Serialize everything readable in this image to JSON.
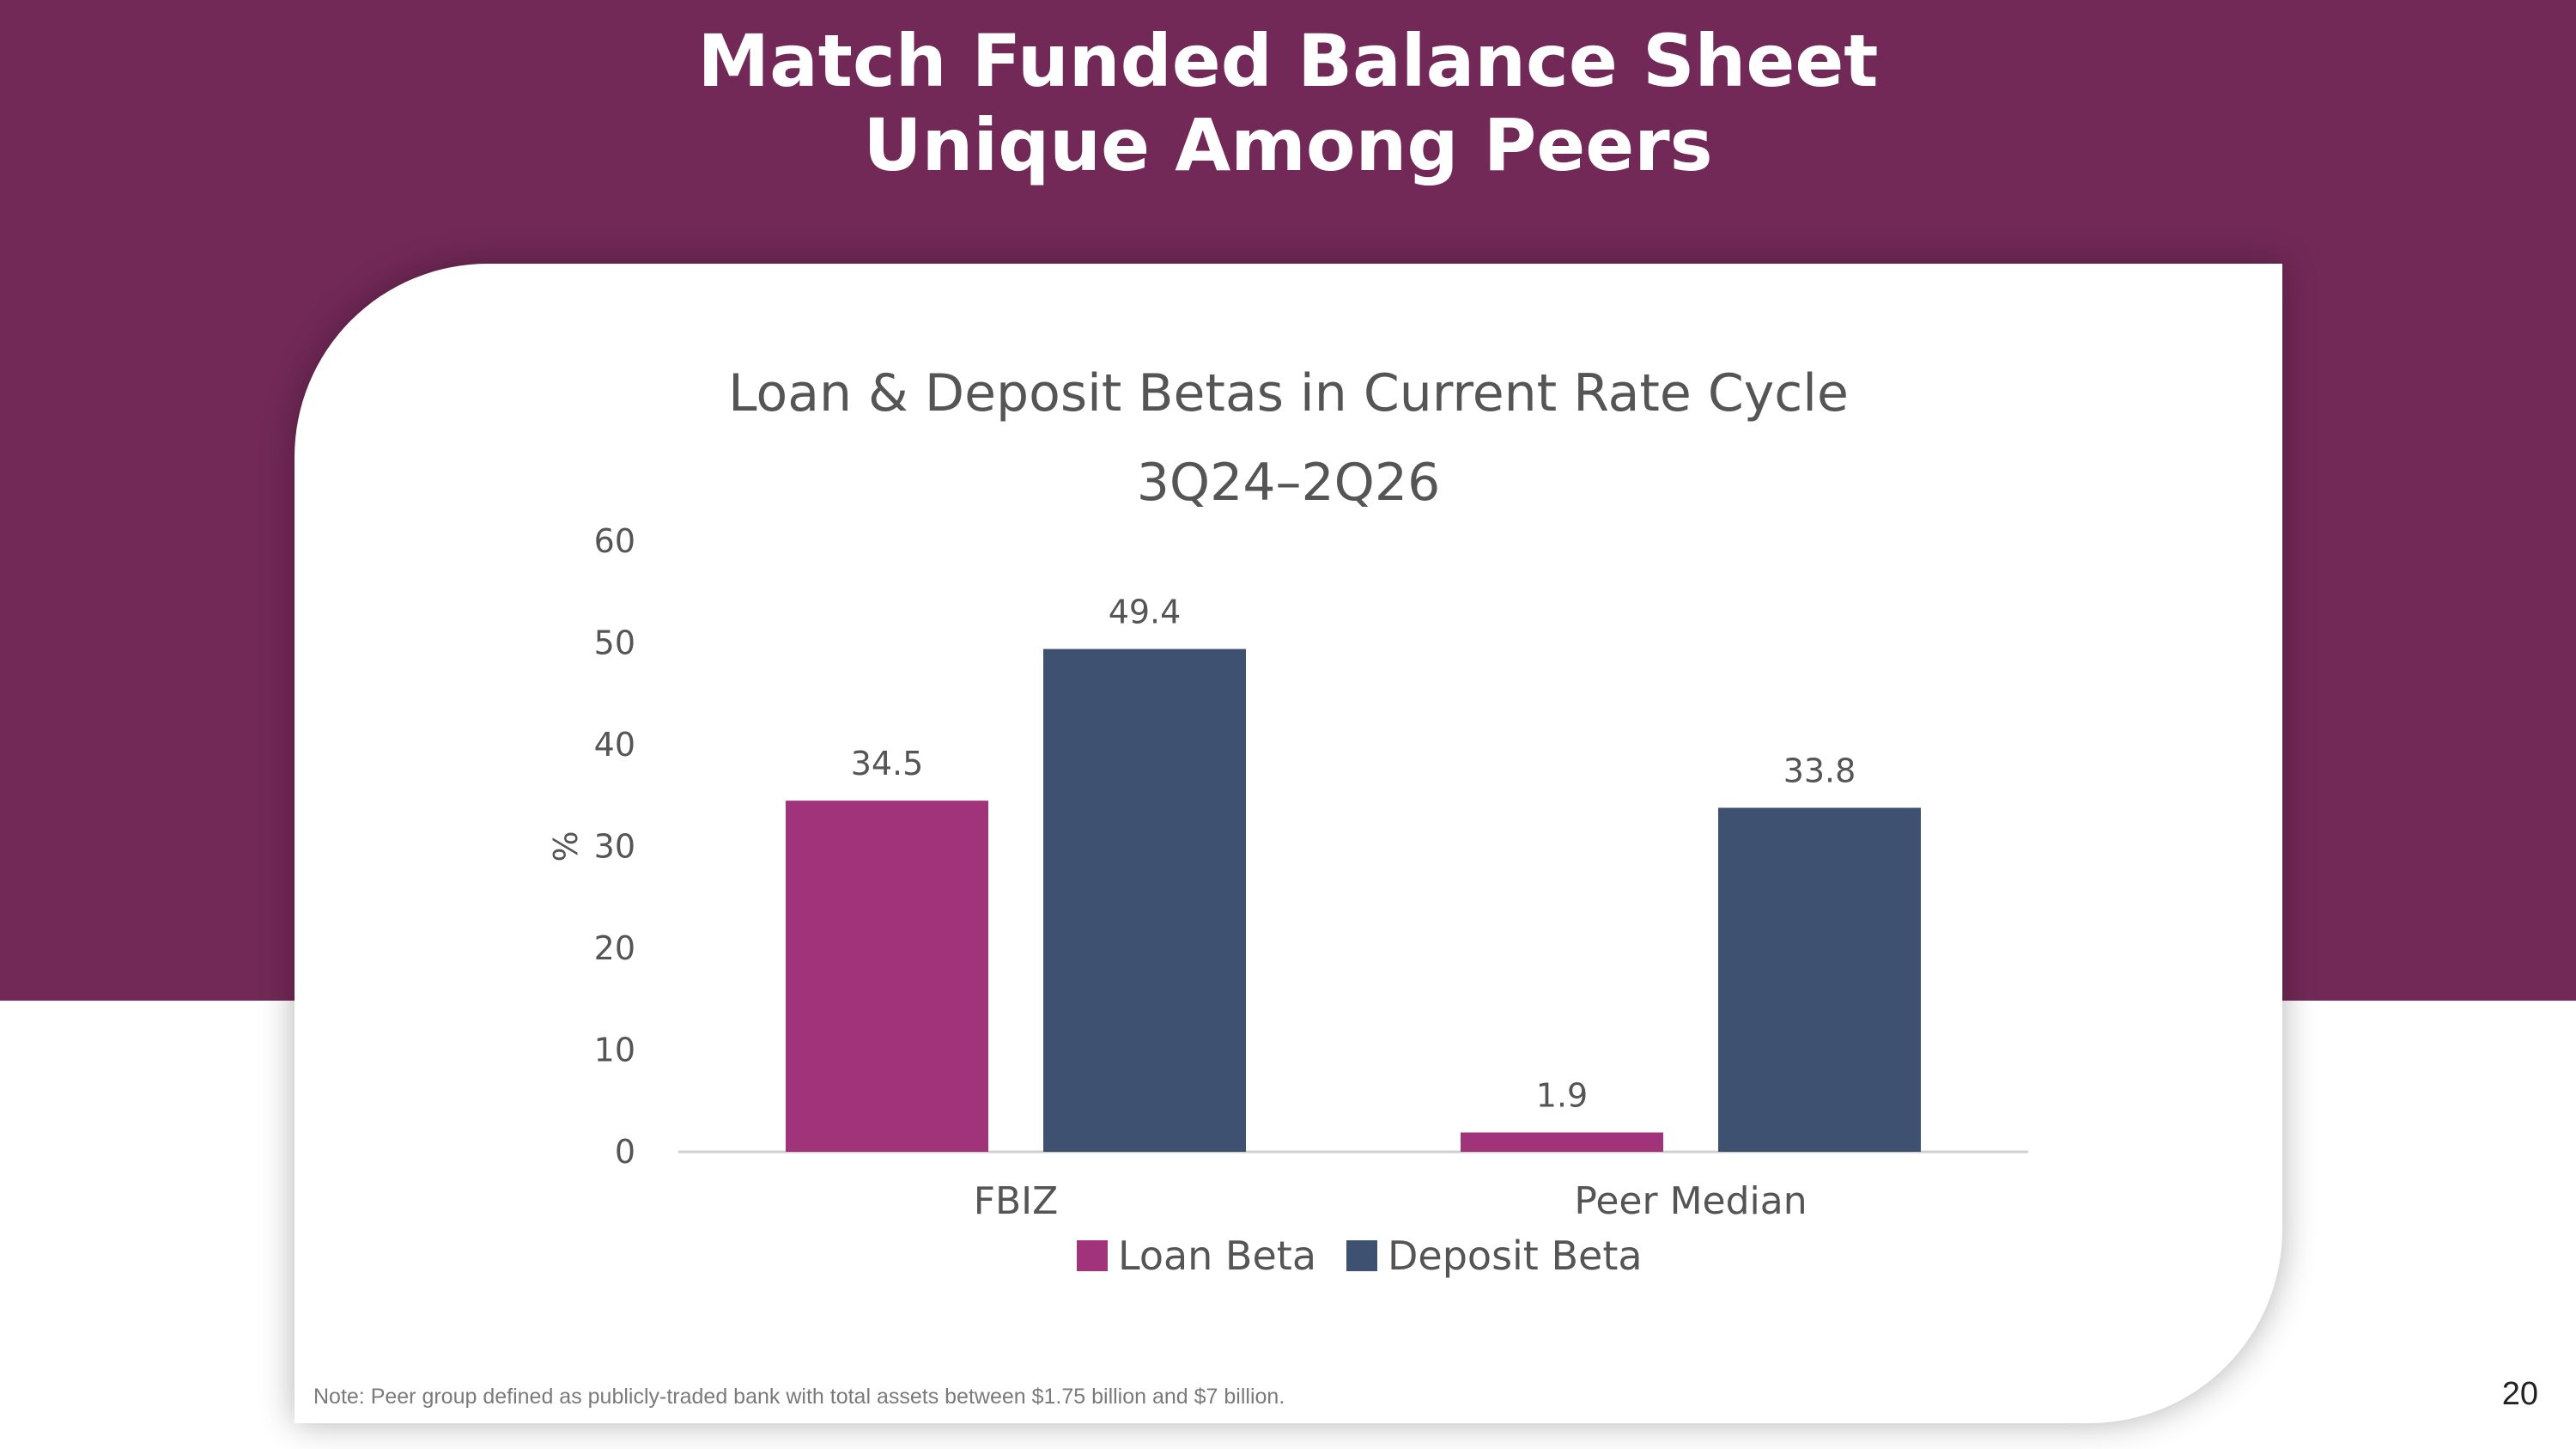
{
  "header": {
    "title_line1": "Match Funded Balance Sheet",
    "title_line2": "Unique Among Peers"
  },
  "chart_data": {
    "type": "bar",
    "title": "Loan & Deposit Betas in Current Rate Cycle",
    "subtitle": "3Q24–2Q26",
    "ylabel": "%",
    "ylim": [
      0,
      60
    ],
    "yticks": [
      0,
      10,
      20,
      30,
      40,
      50,
      60
    ],
    "categories": [
      "FBIZ",
      "Peer Median"
    ],
    "series": [
      {
        "name": "Loan Beta",
        "values": [
          34.5,
          1.9
        ],
        "color": "#A1337A"
      },
      {
        "name": "Deposit Beta",
        "values": [
          49.4,
          33.8
        ],
        "color": "#3E5170"
      }
    ],
    "data_labels": true,
    "legend": "bottom",
    "grid": false
  },
  "footer": {
    "note": "Note: Peer group defined as publicly-traded bank with total assets between $1.75 billion and $7 billion.",
    "page_number": "20"
  },
  "colors": {
    "band": "#722957",
    "loan": "#A1337A",
    "deposit": "#3E5170"
  }
}
